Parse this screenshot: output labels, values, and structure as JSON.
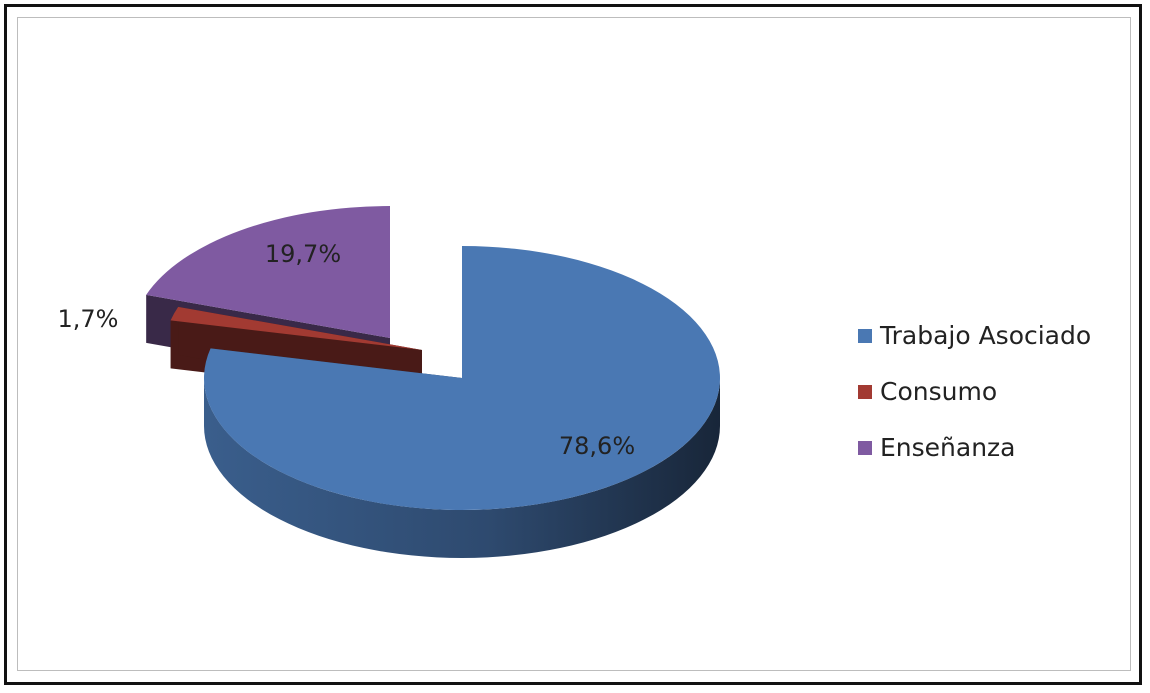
{
  "chart_data": {
    "type": "pie",
    "three_d": true,
    "exploded": true,
    "slices": [
      {
        "label": "Trabajo Asociado",
        "value": 78.6,
        "value_label": "78,6%",
        "color": "#4a78b3"
      },
      {
        "label": "Consumo",
        "value": 1.7,
        "value_label": "1,7%",
        "color": "#a23a32"
      },
      {
        "label": "Enseñanza",
        "value": 19.7,
        "value_label": "19,7%",
        "color": "#7f5aa1"
      }
    ],
    "legend_position": "right"
  }
}
